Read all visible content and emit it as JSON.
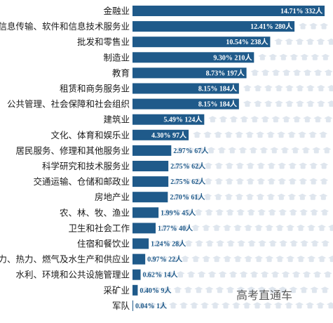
{
  "chart_data": {
    "type": "bar",
    "orientation": "horizontal",
    "bar_color": "#1f5a8a",
    "label_color": "#ffffff",
    "icon_color": "#dfe6ee",
    "categories": [
      "金融业",
      "信息传输、软件和信息技术服务业",
      "批发和零售业",
      "制造业",
      "教育",
      "租赁和商务服务业",
      "公共管理、社会保障和社会组织",
      "建筑业",
      "文化、体育和娱乐业",
      "居民服务、修理和其他服务业",
      "科学研究和技术服务业",
      "交通运输、仓储和邮政业",
      "房地产业",
      "农、林、牧、渔业",
      "卫生和社会工作",
      "住宿和餐饮业",
      "电力、热力、燃气及水生产和供应业",
      "水利、环境和公共设施管理业",
      "采矿业",
      "军队"
    ],
    "values": [
      332,
      280,
      238,
      210,
      197,
      184,
      184,
      124,
      97,
      67,
      62,
      62,
      61,
      45,
      40,
      28,
      22,
      14,
      9,
      1
    ],
    "value_labels": [
      "14.71% 332人",
      "12.41% 280人",
      "10.54% 238人",
      "9.30% 210人",
      "8.73% 197人",
      "8.15% 184人",
      "8.15% 184人",
      "5.49% 124人",
      "4.30% 97人",
      "2.97% 67人",
      "2.75% 62人",
      "2.75% 62人",
      "2.70% 61人",
      "1.99% 45人",
      "1.77% 40人",
      "1.24% 28人",
      "0.97% 22人",
      "0.62% 14人",
      "0.40% 9人",
      "0.04% 1人"
    ],
    "xlim": [
      0,
      332
    ]
  },
  "watermark": "高考直通车"
}
